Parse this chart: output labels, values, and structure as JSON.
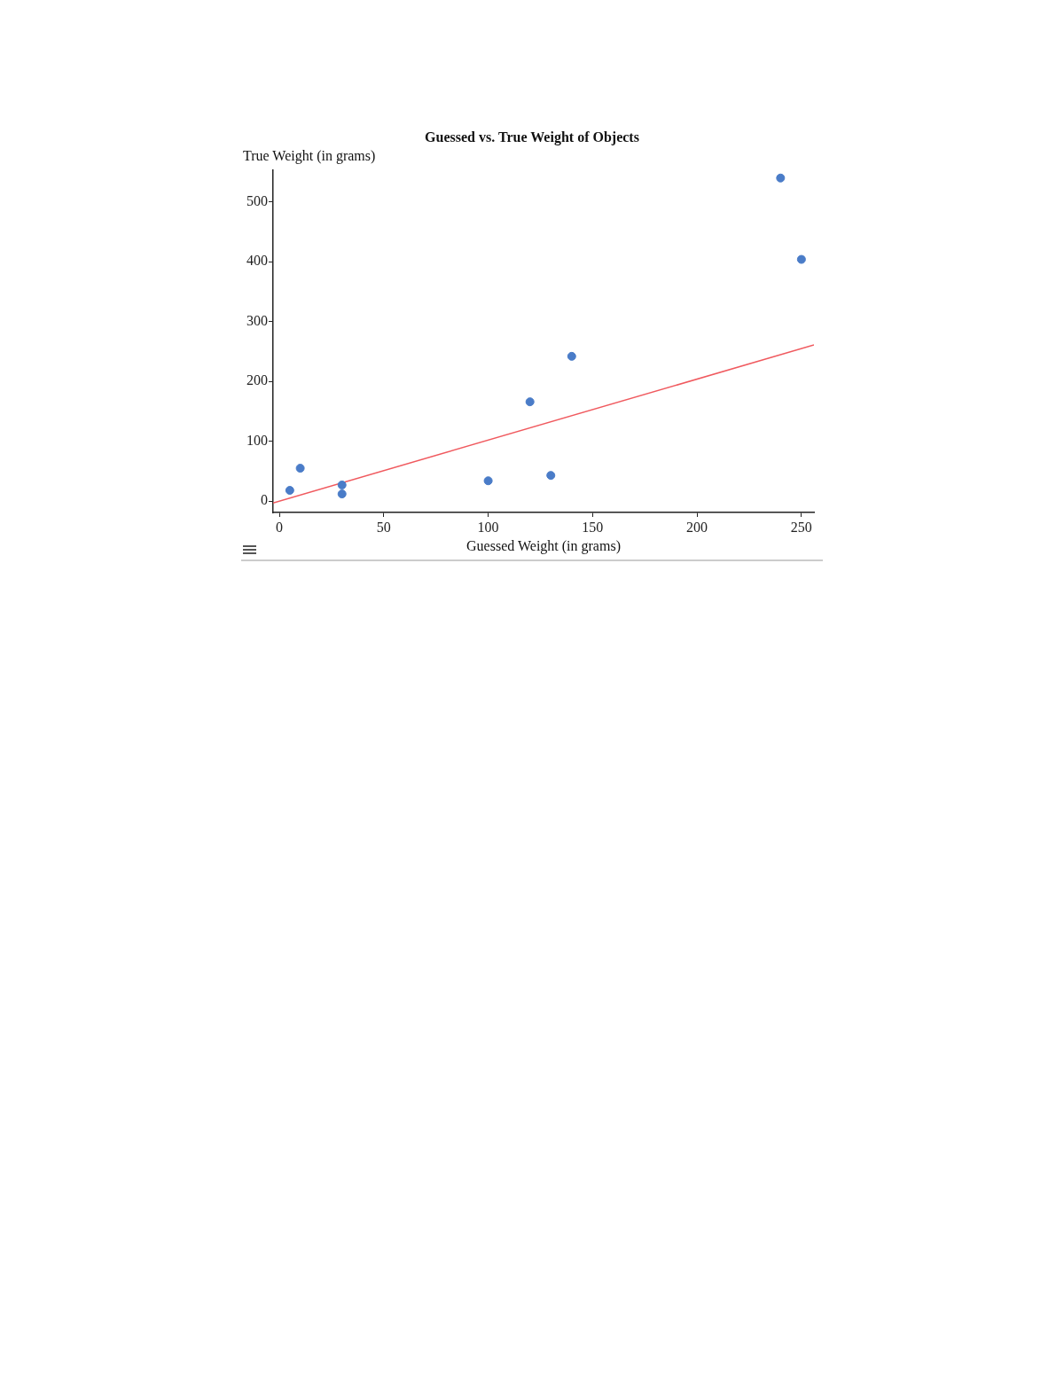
{
  "chart_data": {
    "type": "scatter",
    "title": "Guessed vs. True Weight of Objects",
    "xlabel": "Guessed Weight (in grams)",
    "ylabel": "True Weight (in grams)",
    "series": [
      {
        "color": "#4a7cc8",
        "marker": "circle",
        "x": [
          5,
          10,
          30,
          30,
          100,
          120,
          130,
          140,
          240,
          250
        ],
        "values": [
          18,
          55,
          27,
          12,
          34,
          166,
          43,
          242,
          540,
          404
        ]
      },
      {
        "type": "line",
        "color": "#f05a5f",
        "x": [
          -3,
          256
        ],
        "values": [
          -3,
          261
        ]
      }
    ],
    "xlim": [
      -3,
      256
    ],
    "xticks": [
      0,
      50,
      100,
      150,
      200,
      250
    ],
    "ylim": [
      -19,
      553
    ],
    "yticks": [
      0,
      100,
      200,
      300,
      400,
      500
    ],
    "grid": false,
    "legend": false
  }
}
